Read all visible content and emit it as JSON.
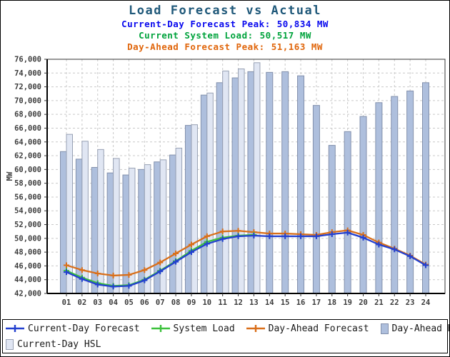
{
  "header": {
    "title": "Load Forecast vs Actual",
    "title_color": "#20597a",
    "subtitles": [
      {
        "label": "Current-Day Forecast Peak:",
        "value": "50,834 MW",
        "color": "#0a0aee"
      },
      {
        "label": "Current System Load:",
        "value": "50,517 MW",
        "color": "#00a33c"
      },
      {
        "label": "Day-Ahead Forecast Peak:",
        "value": "51,163 MW",
        "color": "#e0660c"
      }
    ]
  },
  "axes": {
    "y_label": "MW",
    "y_ticks": [
      "42,000",
      "44,000",
      "46,000",
      "48,000",
      "50,000",
      "52,000",
      "54,000",
      "56,000",
      "58,000",
      "60,000",
      "62,000",
      "64,000",
      "66,000",
      "68,000",
      "70,000",
      "72,000",
      "74,000",
      "76,000"
    ],
    "x_ticks": [
      "01",
      "02",
      "03",
      "04",
      "05",
      "06",
      "07",
      "08",
      "09",
      "10",
      "11",
      "12",
      "13",
      "14",
      "15",
      "16",
      "17",
      "18",
      "19",
      "20",
      "21",
      "22",
      "23",
      "24"
    ],
    "tick_color": "#3d3d3d"
  },
  "legend": {
    "items": [
      {
        "label": "Current-Day Forecast",
        "type": "line",
        "color": "#2340cf"
      },
      {
        "label": "System Load",
        "type": "line",
        "color": "#3cc13c"
      },
      {
        "label": "Day-Ahead Forecast",
        "type": "line",
        "color": "#d96f1a"
      },
      {
        "label": "Day-Ahead HSL",
        "type": "bar",
        "fill": "#aebfdd",
        "stroke": "#8290ac"
      },
      {
        "label": "Current-Day HSL",
        "type": "bar",
        "fill": "#e0e6f3",
        "stroke": "#98a1b4"
      }
    ]
  },
  "chart_data": {
    "type": "bar",
    "subtype": "bars-with-lines",
    "title": "Load Forecast vs Actual",
    "xlabel": "",
    "ylabel": "MW",
    "ylim": [
      42000,
      76000
    ],
    "ytick_step": 2000,
    "grid": true,
    "legend_position": "bottom",
    "categories": [
      "01",
      "02",
      "03",
      "04",
      "05",
      "06",
      "07",
      "08",
      "09",
      "10",
      "11",
      "12",
      "13",
      "14",
      "15",
      "16",
      "17",
      "18",
      "19",
      "20",
      "21",
      "22",
      "23",
      "24"
    ],
    "series": [
      {
        "name": "Day-Ahead HSL",
        "type": "bar",
        "fill": "#aebfdd",
        "stroke": "#8290ac",
        "values": [
          62600,
          61500,
          60300,
          59500,
          59200,
          60000,
          61100,
          62100,
          66400,
          70800,
          72600,
          73300,
          74200,
          74100,
          74200,
          73600,
          69300,
          63500,
          65500,
          67700,
          69700,
          70600,
          71400,
          72600
        ]
      },
      {
        "name": "Current-Day HSL",
        "type": "bar",
        "fill": "#e0e6f3",
        "stroke": "#98a1b4",
        "values": [
          65100,
          64100,
          62900,
          61600,
          60200,
          60700,
          61400,
          63100,
          66500,
          71100,
          74300,
          74600,
          75500,
          null,
          null,
          null,
          null,
          null,
          null,
          null,
          null,
          null,
          null,
          null
        ]
      },
      {
        "name": "Day-Ahead Forecast",
        "type": "line",
        "color": "#d96f1a",
        "values": [
          46100,
          45400,
          44900,
          44600,
          44700,
          45400,
          46500,
          47800,
          49100,
          50300,
          51000,
          51100,
          50900,
          50700,
          50700,
          50600,
          50500,
          50900,
          51163,
          50500,
          49400,
          48500,
          47500,
          46200
        ]
      },
      {
        "name": "System Load",
        "type": "line",
        "color": "#3cc13c",
        "values": [
          45300,
          44300,
          43500,
          43100,
          43200,
          44000,
          45300,
          46700,
          48200,
          49500,
          50100,
          50400,
          50517,
          null,
          null,
          null,
          null,
          null,
          null,
          null,
          null,
          null,
          null,
          null
        ]
      },
      {
        "name": "Current-Day Forecast",
        "type": "line",
        "color": "#2340cf",
        "values": [
          45100,
          44100,
          43300,
          43000,
          43100,
          43900,
          45200,
          46600,
          48000,
          49200,
          49900,
          50300,
          50400,
          50300,
          50300,
          50300,
          50300,
          50600,
          50834,
          50100,
          49100,
          48400,
          47400,
          46100
        ]
      }
    ]
  }
}
